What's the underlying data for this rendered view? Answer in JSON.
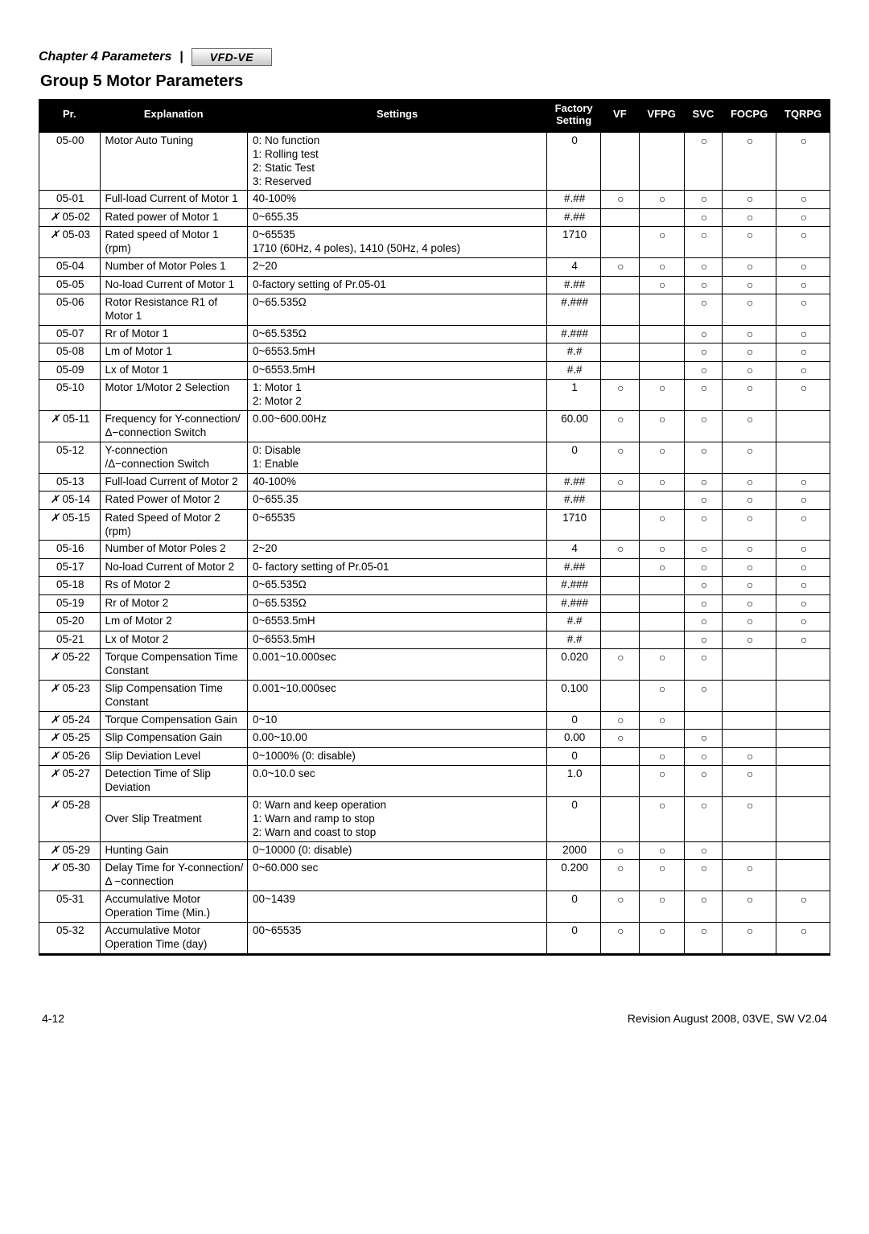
{
  "chapter_label": "Chapter 4 Parameters",
  "brand_logo_text": "VFD-VE",
  "group_title": "Group 5 Motor Parameters",
  "page_number_left": "4-12",
  "page_footer_right": "Revision August 2008, 03VE, SW V2.04",
  "circle_glyph": "○",
  "runtime_glyph": "✗",
  "columns": [
    "Pr.",
    "Explanation",
    "Settings",
    "Factory\nSetting",
    "VF",
    "VFPG",
    "SVC",
    "FOCPG",
    "TQRPG"
  ],
  "rows": [
    {
      "pr": "05-00",
      "runtime": false,
      "expl": "Motor Auto Tuning",
      "set": "0: No function\n1: Rolling test\n2: Static Test\n3: Reserved",
      "fact": "0",
      "vf": "",
      "vfpg": "",
      "svc": "○",
      "focpg": "○",
      "tqrpg": "○",
      "thick_top": true
    },
    {
      "pr": "05-01",
      "runtime": false,
      "expl": "Full-load Current of Motor 1",
      "set": "40-100%",
      "fact": "#.##",
      "vf": "○",
      "vfpg": "○",
      "svc": "○",
      "focpg": "○",
      "tqrpg": "○"
    },
    {
      "pr": "05-02",
      "runtime": true,
      "expl": "Rated power of Motor 1",
      "set": "0~655.35",
      "fact": "#.##",
      "vf": "",
      "vfpg": "",
      "svc": "○",
      "focpg": "○",
      "tqrpg": "○"
    },
    {
      "pr": "05-03",
      "runtime": true,
      "expl": "Rated speed of Motor 1 (rpm)",
      "set": "0~65535\n1710 (60Hz, 4 poles), 1410 (50Hz, 4 poles)",
      "fact": "1710",
      "vf": "",
      "vfpg": "○",
      "svc": "○",
      "focpg": "○",
      "tqrpg": "○"
    },
    {
      "pr": "05-04",
      "runtime": false,
      "expl": "Number of Motor Poles 1",
      "set": "2~20",
      "fact": "4",
      "vf": "○",
      "vfpg": "○",
      "svc": "○",
      "focpg": "○",
      "tqrpg": "○"
    },
    {
      "pr": "05-05",
      "runtime": false,
      "expl": "No-load Current of Motor 1",
      "set": "0-factory setting of Pr.05-01",
      "fact": "#.##",
      "vf": "",
      "vfpg": "○",
      "svc": "○",
      "focpg": "○",
      "tqrpg": "○"
    },
    {
      "pr": "05-06",
      "runtime": false,
      "expl": "Rotor Resistance R1 of Motor 1",
      "set": "0~65.535Ω",
      "fact": "#.###",
      "vf": "",
      "vfpg": "",
      "svc": "○",
      "focpg": "○",
      "tqrpg": "○"
    },
    {
      "pr": "05-07",
      "runtime": false,
      "expl": "Rr of  Motor 1",
      "set": "0~65.535Ω",
      "fact": "#.###",
      "vf": "",
      "vfpg": "",
      "svc": "○",
      "focpg": "○",
      "tqrpg": "○"
    },
    {
      "pr": "05-08",
      "runtime": false,
      "expl": "Lm of Motor 1",
      "set": "0~6553.5mH",
      "fact": "#.#",
      "vf": "",
      "vfpg": "",
      "svc": "○",
      "focpg": "○",
      "tqrpg": "○"
    },
    {
      "pr": "05-09",
      "runtime": false,
      "expl": "Lx of Motor 1",
      "set": "0~6553.5mH",
      "fact": "#.#",
      "vf": "",
      "vfpg": "",
      "svc": "○",
      "focpg": "○",
      "tqrpg": "○"
    },
    {
      "pr": "05-10",
      "runtime": false,
      "expl": "Motor 1/Motor 2 Selection",
      "set": "1: Motor 1\n2: Motor 2",
      "fact": "1",
      "vf": "○",
      "vfpg": "○",
      "svc": "○",
      "focpg": "○",
      "tqrpg": "○"
    },
    {
      "pr": "05-11",
      "runtime": true,
      "expl": "Frequency for Y-connection/\nΔ−connection Switch",
      "set": "0.00~600.00Hz",
      "fact": "60.00",
      "vf": "○",
      "vfpg": "○",
      "svc": "○",
      "focpg": "○",
      "tqrpg": ""
    },
    {
      "pr": "05-12",
      "runtime": false,
      "expl": "Y-connection\n/Δ−connection Switch",
      "set": "0: Disable\n1: Enable",
      "fact": "0",
      "vf": "○",
      "vfpg": "○",
      "svc": "○",
      "focpg": "○",
      "tqrpg": ""
    },
    {
      "pr": "05-13",
      "runtime": false,
      "expl": "Full-load Current of Motor 2",
      "set": "40-100%",
      "fact": "#.##",
      "vf": "○",
      "vfpg": "○",
      "svc": "○",
      "focpg": "○",
      "tqrpg": "○"
    },
    {
      "pr": "05-14",
      "runtime": true,
      "expl": "Rated Power of Motor 2",
      "set": "0~655.35",
      "fact": "#.##",
      "vf": "",
      "vfpg": "",
      "svc": "○",
      "focpg": "○",
      "tqrpg": "○"
    },
    {
      "pr": "05-15",
      "runtime": true,
      "expl": "Rated Speed of Motor 2 (rpm)",
      "set": "0~65535",
      "fact": "1710",
      "vf": "",
      "vfpg": "○",
      "svc": "○",
      "focpg": "○",
      "tqrpg": "○"
    },
    {
      "pr": "05-16",
      "runtime": false,
      "expl": "Number of Motor Poles 2",
      "set": "2~20",
      "fact": "4",
      "vf": "○",
      "vfpg": "○",
      "svc": "○",
      "focpg": "○",
      "tqrpg": "○"
    },
    {
      "pr": "05-17",
      "runtime": false,
      "expl": "No-load Current of Motor 2",
      "set": "0- factory setting of Pr.05-01",
      "fact": "#.##",
      "vf": "",
      "vfpg": "○",
      "svc": "○",
      "focpg": "○",
      "tqrpg": "○"
    },
    {
      "pr": "05-18",
      "runtime": false,
      "expl": "Rs of Motor 2",
      "set": "0~65.535Ω",
      "fact": "#.###",
      "vf": "",
      "vfpg": "",
      "svc": "○",
      "focpg": "○",
      "tqrpg": "○"
    },
    {
      "pr": "05-19",
      "runtime": false,
      "expl": "Rr of Motor 2",
      "set": "0~65.535Ω",
      "fact": "#.###",
      "vf": "",
      "vfpg": "",
      "svc": "○",
      "focpg": "○",
      "tqrpg": "○"
    },
    {
      "pr": "05-20",
      "runtime": false,
      "expl": "Lm of Motor 2",
      "set": "0~6553.5mH",
      "fact": "#.#",
      "vf": "",
      "vfpg": "",
      "svc": "○",
      "focpg": "○",
      "tqrpg": "○"
    },
    {
      "pr": "05-21",
      "runtime": false,
      "expl": "Lx of Motor 2",
      "set": "0~6553.5mH",
      "fact": "#.#",
      "vf": "",
      "vfpg": "",
      "svc": "○",
      "focpg": "○",
      "tqrpg": "○"
    },
    {
      "pr": "05-22",
      "runtime": true,
      "expl": "Torque Compensation Time Constant",
      "set": "0.001~10.000sec",
      "fact": "0.020",
      "vf": "○",
      "vfpg": "○",
      "svc": "○",
      "focpg": "",
      "tqrpg": ""
    },
    {
      "pr": "05-23",
      "runtime": true,
      "expl": "Slip Compensation Time Constant",
      "set": "0.001~10.000sec",
      "fact": "0.100",
      "vf": "",
      "vfpg": "○",
      "svc": "○",
      "focpg": "",
      "tqrpg": ""
    },
    {
      "pr": "05-24",
      "runtime": true,
      "expl": "Torque Compensation Gain",
      "set": "0~10",
      "fact": "0",
      "vf": "○",
      "vfpg": "○",
      "svc": "",
      "focpg": "",
      "tqrpg": ""
    },
    {
      "pr": "05-25",
      "runtime": true,
      "expl": "Slip Compensation Gain",
      "set": "0.00~10.00",
      "fact": "0.00",
      "vf": "○",
      "vfpg": "",
      "svc": "○",
      "focpg": "",
      "tqrpg": ""
    },
    {
      "pr": "05-26",
      "runtime": true,
      "expl": "Slip Deviation Level",
      "set": "0~1000% (0: disable)",
      "fact": "0",
      "vf": "",
      "vfpg": "○",
      "svc": "○",
      "focpg": "○",
      "tqrpg": ""
    },
    {
      "pr": "05-27",
      "runtime": true,
      "expl": "Detection Time of Slip Deviation",
      "set": "0.0~10.0 sec",
      "fact": "1.0",
      "vf": "",
      "vfpg": "○",
      "svc": "○",
      "focpg": "○",
      "tqrpg": ""
    },
    {
      "pr": "05-28",
      "runtime": true,
      "expl": "\nOver Slip Treatment",
      "set": "0: Warn and keep operation\n1: Warn and ramp to stop\n2: Warn and coast to stop",
      "fact": "0",
      "vf": "",
      "vfpg": "○",
      "svc": "○",
      "focpg": "○",
      "tqrpg": ""
    },
    {
      "pr": "05-29",
      "runtime": true,
      "expl": "Hunting Gain",
      "set": "0~10000 (0: disable)",
      "fact": "2000",
      "vf": "○",
      "vfpg": "○",
      "svc": "○",
      "focpg": "",
      "tqrpg": ""
    },
    {
      "pr": "05-30",
      "runtime": true,
      "expl": "Delay Time for Y-connection/Δ −connection",
      "set": "0~60.000 sec",
      "fact": "0.200",
      "vf": "○",
      "vfpg": "○",
      "svc": "○",
      "focpg": "○",
      "tqrpg": ""
    },
    {
      "pr": "05-31",
      "runtime": false,
      "expl": "Accumulative Motor Operation Time (Min.)",
      "set": "00~1439",
      "fact": "0",
      "vf": "○",
      "vfpg": "○",
      "svc": "○",
      "focpg": "○",
      "tqrpg": "○"
    },
    {
      "pr": "05-32",
      "runtime": false,
      "expl": "Accumulative Motor Operation Time (day)",
      "set": "00~65535",
      "fact": "0",
      "vf": "○",
      "vfpg": "○",
      "svc": "○",
      "focpg": "○",
      "tqrpg": "○",
      "bottom_heavy": true
    }
  ]
}
